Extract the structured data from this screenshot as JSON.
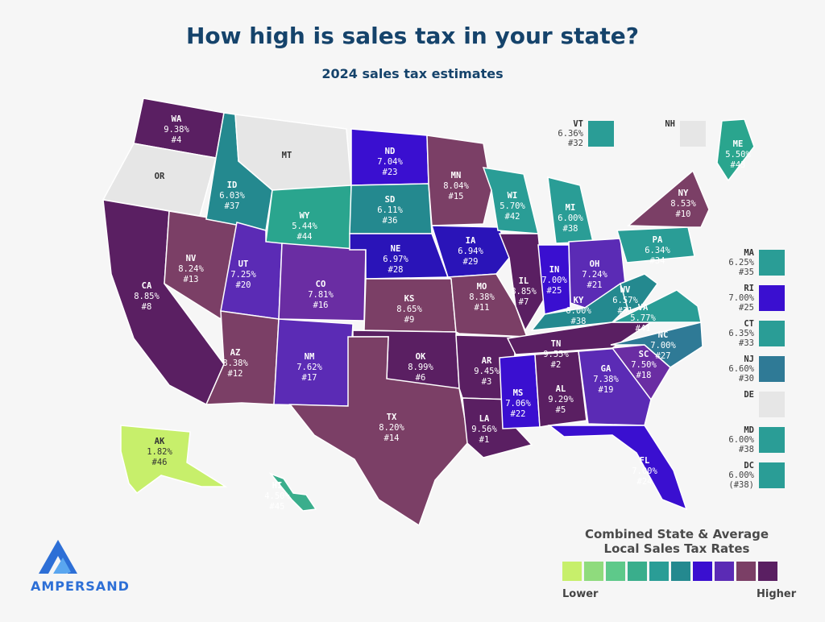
{
  "header": {
    "title": "How high is sales tax in your state?",
    "subtitle": "2024 sales tax estimates"
  },
  "colors": {
    "nodata": "#e6e6e6",
    "lime": "#c7ef6b",
    "teal": "#2a9d96",
    "teal_light": "#3aae8c",
    "blue": "#3a0fd0",
    "violet": "#5b2bb5",
    "purple": "#6a2d93",
    "mauve": "#7b3f66",
    "plum": "#5a1f62"
  },
  "states": [
    {
      "code": "WA",
      "rate": "9.38%",
      "rank": "#4",
      "color": "#5a1f62"
    },
    {
      "code": "OR",
      "rate": "",
      "rank": "",
      "color": "#e6e6e6"
    },
    {
      "code": "CA",
      "rate": "8.85%",
      "rank": "#8",
      "color": "#5a1f62"
    },
    {
      "code": "NV",
      "rate": "8.24%",
      "rank": "#13",
      "color": "#7b3f66"
    },
    {
      "code": "ID",
      "rate": "6.03%",
      "rank": "#37",
      "color": "#24898f"
    },
    {
      "code": "MT",
      "rate": "",
      "rank": "",
      "color": "#e6e6e6"
    },
    {
      "code": "WY",
      "rate": "5.44%",
      "rank": "#44",
      "color": "#2aa58e"
    },
    {
      "code": "UT",
      "rate": "7.25%",
      "rank": "#20",
      "color": "#5b2bb5"
    },
    {
      "code": "AZ",
      "rate": "8.38%",
      "rank": "#12",
      "color": "#7b3f66"
    },
    {
      "code": "CO",
      "rate": "7.81%",
      "rank": "#16",
      "color": "#6a2da3"
    },
    {
      "code": "NM",
      "rate": "7.62%",
      "rank": "#17",
      "color": "#5b2bb5"
    },
    {
      "code": "ND",
      "rate": "7.04%",
      "rank": "#23",
      "color": "#3a0fd0"
    },
    {
      "code": "SD",
      "rate": "6.11%",
      "rank": "#36",
      "color": "#24898f"
    },
    {
      "code": "NE",
      "rate": "6.97%",
      "rank": "#28",
      "color": "#2a14b8"
    },
    {
      "code": "KS",
      "rate": "8.65%",
      "rank": "#9",
      "color": "#7b3f66"
    },
    {
      "code": "OK",
      "rate": "8.99%",
      "rank": "#6",
      "color": "#5a1f62"
    },
    {
      "code": "TX",
      "rate": "8.20%",
      "rank": "#14",
      "color": "#7b3f66"
    },
    {
      "code": "MN",
      "rate": "8.04%",
      "rank": "#15",
      "color": "#7b3f66"
    },
    {
      "code": "IA",
      "rate": "6.94%",
      "rank": "#29",
      "color": "#2a14b8"
    },
    {
      "code": "MO",
      "rate": "8.38%",
      "rank": "#11",
      "color": "#7b3f66"
    },
    {
      "code": "AR",
      "rate": "9.45%",
      "rank": "#3",
      "color": "#5a1f62"
    },
    {
      "code": "LA",
      "rate": "9.56%",
      "rank": "#1",
      "color": "#5a1f62"
    },
    {
      "code": "WI",
      "rate": "5.70%",
      "rank": "#42",
      "color": "#2a9d96"
    },
    {
      "code": "IL",
      "rate": "8.85%",
      "rank": "#7",
      "color": "#5a1f62"
    },
    {
      "code": "MI",
      "rate": "6.00%",
      "rank": "#38",
      "color": "#2a9d96"
    },
    {
      "code": "IN",
      "rate": "7.00%",
      "rank": "#25",
      "color": "#3a0fd0"
    },
    {
      "code": "OH",
      "rate": "7.24%",
      "rank": "#21",
      "color": "#5b2bb5"
    },
    {
      "code": "KY",
      "rate": "6.00%",
      "rank": "#38",
      "color": "#24898f"
    },
    {
      "code": "TN",
      "rate": "9.55%",
      "rank": "#2",
      "color": "#5a1f62"
    },
    {
      "code": "MS",
      "rate": "7.06%",
      "rank": "#22",
      "color": "#3a0fd0"
    },
    {
      "code": "AL",
      "rate": "9.29%",
      "rank": "#5",
      "color": "#5a1f62"
    },
    {
      "code": "GA",
      "rate": "7.38%",
      "rank": "#19",
      "color": "#5b2bb5"
    },
    {
      "code": "FL",
      "rate": "7.00%",
      "rank": "#24",
      "color": "#3a0fd0"
    },
    {
      "code": "SC",
      "rate": "7.50%",
      "rank": "#18",
      "color": "#6a2da3"
    },
    {
      "code": "NC",
      "rate": "7.00%",
      "rank": "#27",
      "color": "#2f7a96"
    },
    {
      "code": "VA",
      "rate": "5.77%",
      "rank": "#41",
      "color": "#2a9d96"
    },
    {
      "code": "WV",
      "rate": "6.57%",
      "rank": "#31",
      "color": "#24898f"
    },
    {
      "code": "PA",
      "rate": "6.34%",
      "rank": "#34",
      "color": "#2a9d96"
    },
    {
      "code": "NY",
      "rate": "8.53%",
      "rank": "#10",
      "color": "#7b3f66"
    },
    {
      "code": "ME",
      "rate": "5.50%",
      "rank": "#43",
      "color": "#2aa58e"
    },
    {
      "code": "AK",
      "rate": "1.82%",
      "rank": "#46",
      "color": "#c7ef6b"
    },
    {
      "code": "HI",
      "rate": "4.50%",
      "rank": "#45",
      "color": "#3aae8c"
    }
  ],
  "small_states": [
    {
      "code": "VT",
      "rate": "6.36%",
      "rank": "#32",
      "color": "#2a9d96"
    },
    {
      "code": "NH",
      "rate": "",
      "rank": "",
      "color": "#e6e6e6"
    },
    {
      "code": "MA",
      "rate": "6.25%",
      "rank": "#35",
      "color": "#2a9d96"
    },
    {
      "code": "RI",
      "rate": "7.00%",
      "rank": "#25",
      "color": "#3a0fd0"
    },
    {
      "code": "CT",
      "rate": "6.35%",
      "rank": "#33",
      "color": "#2a9d96"
    },
    {
      "code": "NJ",
      "rate": "6.60%",
      "rank": "#30",
      "color": "#2f7a96"
    },
    {
      "code": "DE",
      "rate": "",
      "rank": "",
      "color": "#e6e6e6"
    },
    {
      "code": "MD",
      "rate": "6.00%",
      "rank": "#38",
      "color": "#2a9d96"
    },
    {
      "code": "DC",
      "rate": "6.00%",
      "rank": "(#38)",
      "color": "#2a9d96"
    }
  ],
  "legend": {
    "title_line1": "Combined State & Average",
    "title_line2": "Local Sales Tax Rates",
    "low_label": "Lower",
    "high_label": "Higher",
    "scale": [
      "#c7ef6b",
      "#8fdb7d",
      "#5ec98a",
      "#3aae8c",
      "#2a9d96",
      "#24898f",
      "#3a0fd0",
      "#5b2bb5",
      "#7b3f66",
      "#5a1f62"
    ]
  },
  "logo": {
    "name": "AMPERSAND"
  }
}
